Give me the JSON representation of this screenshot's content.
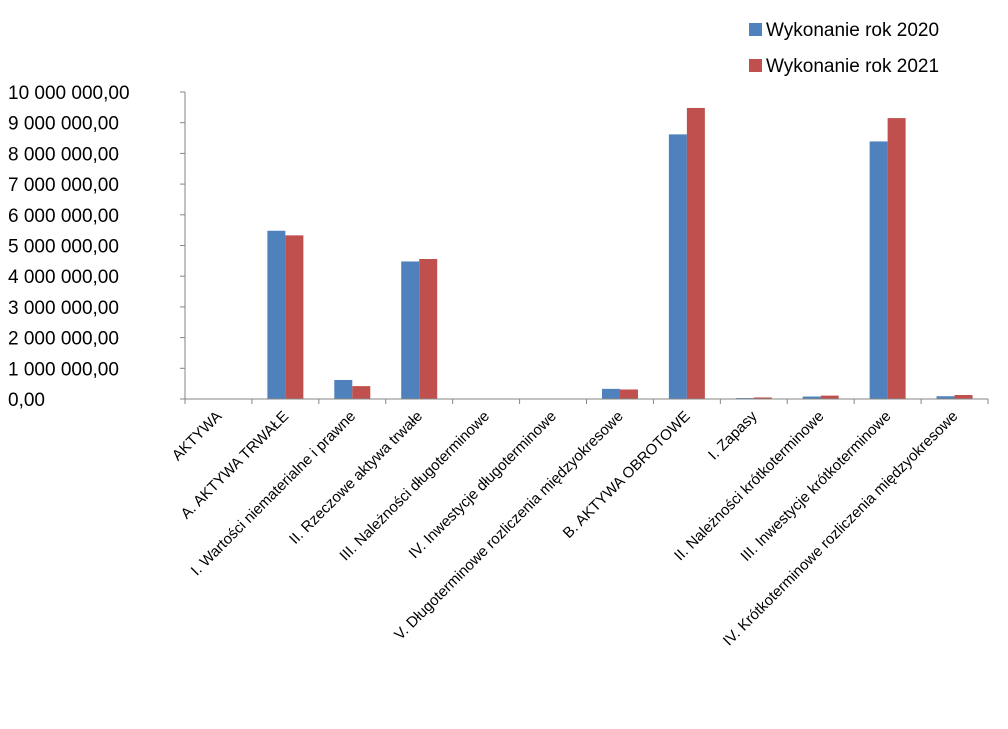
{
  "chart_data": {
    "type": "bar",
    "categories": [
      "AKTYWA",
      "A. AKTYWA TRWAŁE",
      "I. Wartości niematerialne i prawne",
      "II. Rzeczowe aktywa trwałe",
      "III. Należności długoterminowe",
      "IV. Inwestycje długoterminowe",
      "V. Długoterminowe rozliczenia międzyokresowe",
      "B. AKTYWA OBROTOWE",
      "I. Zapasy",
      "II. Należności krótkoterminowe",
      "III. Inwestycje krótkoterminowe",
      "IV. Krótkoterminowe rozliczenia międzyokresowe"
    ],
    "series": [
      {
        "name": "Wykonanie rok 2020",
        "color": "#4F81BD",
        "values": [
          0,
          5480000,
          620000,
          4480000,
          0,
          10000,
          330000,
          8620000,
          30000,
          80000,
          8390000,
          90000
        ]
      },
      {
        "name": "Wykonanie rok 2021",
        "color": "#C0504D",
        "values": [
          0,
          5330000,
          420000,
          4560000,
          0,
          10000,
          310000,
          9480000,
          50000,
          110000,
          9150000,
          130000
        ]
      }
    ],
    "yticks": [
      "0,00",
      "1 000 000,00",
      "2 000 000,00",
      "3 000 000,00",
      "4 000 000,00",
      "5 000 000,00",
      "6 000 000,00",
      "7 000 000,00",
      "8 000 000,00",
      "9 000 000,00",
      "10 000 000,00"
    ],
    "ylim": [
      0,
      10000000
    ],
    "legend_position": "top-right",
    "grid": false
  }
}
